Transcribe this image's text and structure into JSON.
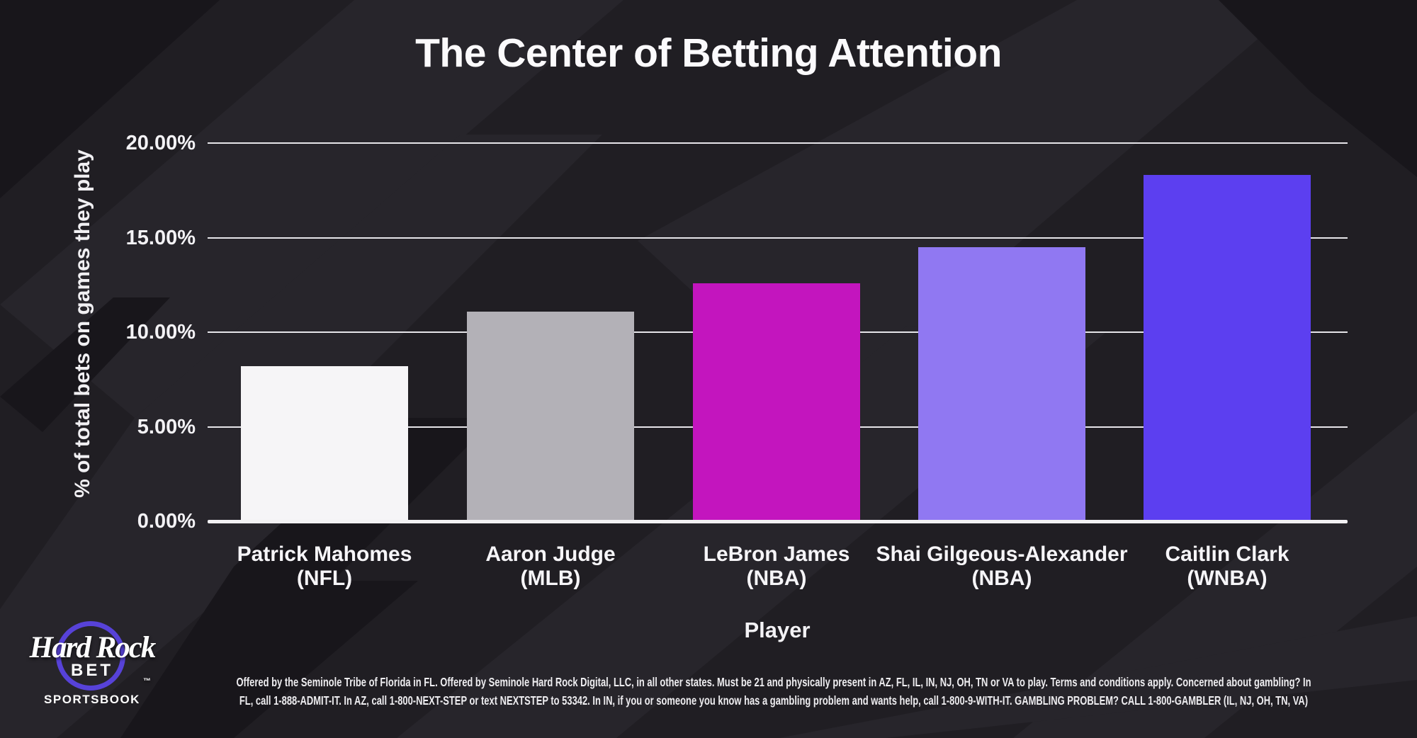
{
  "chart_data": {
    "type": "bar",
    "title": "The Center of Betting Attention",
    "xlabel": "Player",
    "ylabel": "% of total bets on games they play",
    "categories": [
      "Patrick Mahomes (NFL)",
      "Aaron Judge (MLB)",
      "LeBron James (NBA)",
      "Shai Gilgeous-Alexander (NBA)",
      "Caitlin Clark (WNBA)"
    ],
    "category_lines": [
      [
        "Patrick Mahomes",
        "(NFL)"
      ],
      [
        "Aaron Judge",
        "(MLB)"
      ],
      [
        "LeBron James",
        "(NBA)"
      ],
      [
        "Shai Gilgeous-Alexander",
        "(NBA)"
      ],
      [
        "Caitlin Clark",
        "(WNBA)"
      ]
    ],
    "values": [
      8.2,
      11.1,
      12.6,
      14.5,
      18.3
    ],
    "unit": "%",
    "bar_colors": [
      "#f6f5f7",
      "#b3b1b7",
      "#c315be",
      "#9078f2",
      "#5c3ff0"
    ],
    "ylim": [
      0,
      20
    ],
    "yticks": [
      0,
      5,
      10,
      15,
      20
    ],
    "ytick_labels": [
      "0.00%",
      "5.00%",
      "10.00%",
      "15.00%",
      "20.00%"
    ],
    "grid": true,
    "legend_position": "none"
  },
  "logo": {
    "brand_script": "Hard Rock",
    "trademark": "™",
    "brand_sub": "BET",
    "tagline": "SPORTSBOOK",
    "ring_color": "#5742d8"
  },
  "disclaimer": {
    "line1": "Offered by the Seminole Tribe of Florida in FL. Offered by Seminole Hard Rock Digital, LLC, in all other states. Must be 21 and physically present in AZ, FL, IL, IN, NJ, OH, TN or VA to play. Terms and conditions apply. Concerned about gambling? In",
    "line2": "FL, call 1-888-ADMIT-IT. In AZ, call 1-800-NEXT-STEP or text NEXTSTEP to 53342. In IN, if you or someone you know has a gambling problem and wants help, call 1-800-9-WITH-IT. GAMBLING PROBLEM? CALL 1-800-GAMBLER (IL, NJ, OH, TN, VA)"
  },
  "colors": {
    "background": "#201e23",
    "background_shape_light": "#27252b",
    "background_shape_dark": "#18161b",
    "text": "#f5f4f6",
    "gridline": "#e6e5e9",
    "axis_line": "#f2f1f3"
  }
}
